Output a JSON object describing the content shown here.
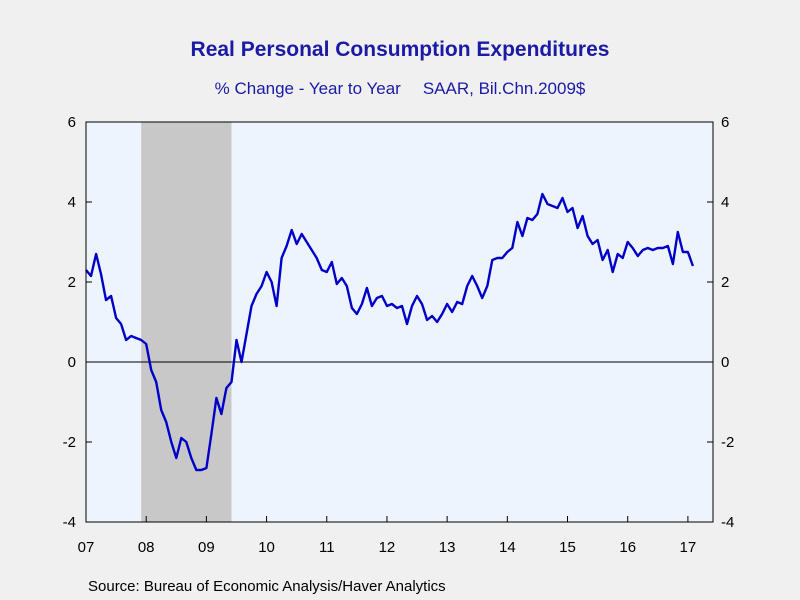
{
  "chart_data": {
    "type": "line",
    "title": "Real Personal Consumption Expenditures",
    "subtitle": "% Change - Year to Year",
    "subtitle2": "SAAR, Bil.Chn.2009$",
    "source": "Source:  Bureau of Economic Analysis/Haver Analytics",
    "ylim": [
      -4,
      6
    ],
    "yticks": [
      6,
      4,
      2,
      0,
      -2,
      -4
    ],
    "xlim": [
      2007.0,
      2017.417
    ],
    "xticks": [
      {
        "value": 2007,
        "label": "07"
      },
      {
        "value": 2008,
        "label": "08"
      },
      {
        "value": 2009,
        "label": "09"
      },
      {
        "value": 2010,
        "label": "10"
      },
      {
        "value": 2011,
        "label": "11"
      },
      {
        "value": 2012,
        "label": "12"
      },
      {
        "value": 2013,
        "label": "13"
      },
      {
        "value": 2014,
        "label": "14"
      },
      {
        "value": 2015,
        "label": "15"
      },
      {
        "value": 2016,
        "label": "16"
      },
      {
        "value": 2017,
        "label": "17"
      }
    ],
    "recession": {
      "start": 2007.917,
      "end": 2009.417
    },
    "colors": {
      "line": "#0000c8",
      "plot_bg": "#eef4fd",
      "recession": "#c8c8c8",
      "text": "#1a1aa6"
    },
    "grid": false,
    "legend": "none",
    "series": [
      {
        "values": [
          [
            2007.0,
            2.3
          ],
          [
            2007.083,
            2.15
          ],
          [
            2007.167,
            2.7
          ],
          [
            2007.25,
            2.2
          ],
          [
            2007.333,
            1.55
          ],
          [
            2007.417,
            1.65
          ],
          [
            2007.5,
            1.1
          ],
          [
            2007.583,
            0.95
          ],
          [
            2007.667,
            0.55
          ],
          [
            2007.75,
            0.65
          ],
          [
            2007.833,
            0.6
          ],
          [
            2007.917,
            0.55
          ],
          [
            2008.0,
            0.45
          ],
          [
            2008.083,
            -0.2
          ],
          [
            2008.167,
            -0.5
          ],
          [
            2008.25,
            -1.2
          ],
          [
            2008.333,
            -1.5
          ],
          [
            2008.417,
            -2.0
          ],
          [
            2008.5,
            -2.4
          ],
          [
            2008.583,
            -1.9
          ],
          [
            2008.667,
            -2.0
          ],
          [
            2008.75,
            -2.4
          ],
          [
            2008.833,
            -2.7
          ],
          [
            2008.917,
            -2.7
          ],
          [
            2009.0,
            -2.65
          ],
          [
            2009.083,
            -1.8
          ],
          [
            2009.167,
            -0.9
          ],
          [
            2009.25,
            -1.3
          ],
          [
            2009.333,
            -0.65
          ],
          [
            2009.417,
            -0.5
          ],
          [
            2009.5,
            0.55
          ],
          [
            2009.583,
            0.0
          ],
          [
            2009.667,
            0.7
          ],
          [
            2009.75,
            1.4
          ],
          [
            2009.833,
            1.7
          ],
          [
            2009.917,
            1.9
          ],
          [
            2010.0,
            2.25
          ],
          [
            2010.083,
            2.0
          ],
          [
            2010.167,
            1.4
          ],
          [
            2010.25,
            2.6
          ],
          [
            2010.333,
            2.9
          ],
          [
            2010.417,
            3.3
          ],
          [
            2010.5,
            2.95
          ],
          [
            2010.583,
            3.2
          ],
          [
            2010.667,
            3.0
          ],
          [
            2010.75,
            2.8
          ],
          [
            2010.833,
            2.6
          ],
          [
            2010.917,
            2.3
          ],
          [
            2011.0,
            2.25
          ],
          [
            2011.083,
            2.5
          ],
          [
            2011.167,
            1.95
          ],
          [
            2011.25,
            2.1
          ],
          [
            2011.333,
            1.9
          ],
          [
            2011.417,
            1.35
          ],
          [
            2011.5,
            1.2
          ],
          [
            2011.583,
            1.45
          ],
          [
            2011.667,
            1.85
          ],
          [
            2011.75,
            1.4
          ],
          [
            2011.833,
            1.6
          ],
          [
            2011.917,
            1.65
          ],
          [
            2012.0,
            1.4
          ],
          [
            2012.083,
            1.45
          ],
          [
            2012.167,
            1.35
          ],
          [
            2012.25,
            1.4
          ],
          [
            2012.333,
            0.95
          ],
          [
            2012.417,
            1.4
          ],
          [
            2012.5,
            1.65
          ],
          [
            2012.583,
            1.45
          ],
          [
            2012.667,
            1.05
          ],
          [
            2012.75,
            1.15
          ],
          [
            2012.833,
            1.0
          ],
          [
            2012.917,
            1.2
          ],
          [
            2013.0,
            1.45
          ],
          [
            2013.083,
            1.25
          ],
          [
            2013.167,
            1.5
          ],
          [
            2013.25,
            1.45
          ],
          [
            2013.333,
            1.9
          ],
          [
            2013.417,
            2.15
          ],
          [
            2013.5,
            1.9
          ],
          [
            2013.583,
            1.6
          ],
          [
            2013.667,
            1.9
          ],
          [
            2013.75,
            2.55
          ],
          [
            2013.833,
            2.6
          ],
          [
            2013.917,
            2.6
          ],
          [
            2014.0,
            2.75
          ],
          [
            2014.083,
            2.85
          ],
          [
            2014.167,
            3.5
          ],
          [
            2014.25,
            3.15
          ],
          [
            2014.333,
            3.6
          ],
          [
            2014.417,
            3.55
          ],
          [
            2014.5,
            3.7
          ],
          [
            2014.583,
            4.2
          ],
          [
            2014.667,
            3.95
          ],
          [
            2014.75,
            3.9
          ],
          [
            2014.833,
            3.85
          ],
          [
            2014.917,
            4.1
          ],
          [
            2015.0,
            3.75
          ],
          [
            2015.083,
            3.85
          ],
          [
            2015.167,
            3.35
          ],
          [
            2015.25,
            3.65
          ],
          [
            2015.333,
            3.15
          ],
          [
            2015.417,
            2.95
          ],
          [
            2015.5,
            3.05
          ],
          [
            2015.583,
            2.55
          ],
          [
            2015.667,
            2.8
          ],
          [
            2015.75,
            2.25
          ],
          [
            2015.833,
            2.7
          ],
          [
            2015.917,
            2.6
          ],
          [
            2016.0,
            3.0
          ],
          [
            2016.083,
            2.85
          ],
          [
            2016.167,
            2.65
          ],
          [
            2016.25,
            2.8
          ],
          [
            2016.333,
            2.85
          ],
          [
            2016.417,
            2.8
          ],
          [
            2016.5,
            2.85
          ],
          [
            2016.583,
            2.85
          ],
          [
            2016.667,
            2.9
          ],
          [
            2016.75,
            2.45
          ],
          [
            2016.833,
            3.25
          ],
          [
            2016.917,
            2.75
          ],
          [
            2017.0,
            2.75
          ],
          [
            2017.083,
            2.4
          ]
        ]
      }
    ]
  }
}
